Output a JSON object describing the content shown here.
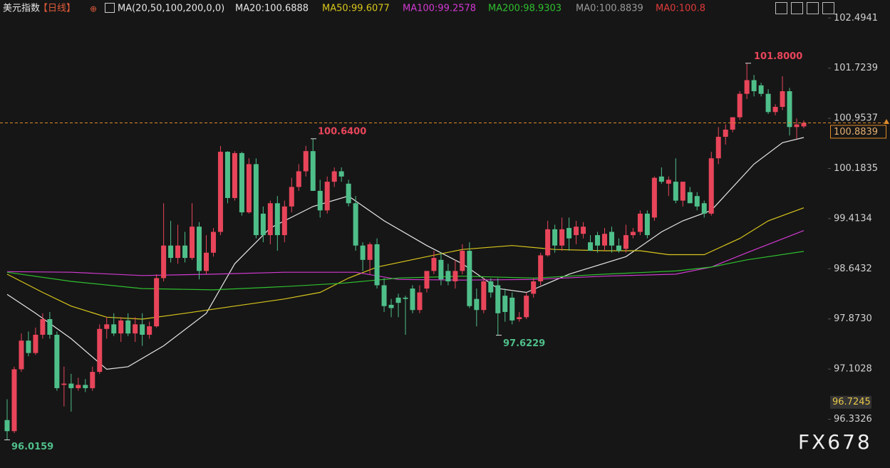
{
  "chart_data": {
    "type": "candlestick",
    "title": "美元指数",
    "period": "【日线】",
    "indicator": "MA(20,50,100,200,0,0)",
    "watermark": "FX678",
    "up_color": "#e8455a",
    "down_color": "#4fbf8a",
    "grid": false,
    "ylim": [
      95.77,
      102.53
    ],
    "yticks": [
      102.4941,
      101.7239,
      100.9537,
      100.1835,
      99.4134,
      98.6432,
      {
        "value": 97.873,
        "label": "97.8730"
      },
      97.1028,
      96.3326
    ],
    "last_price": 100.8839,
    "marker_price": 96.7245,
    "annotations": [
      {
        "value": 101.8,
        "label": "101.8000"
      },
      {
        "value": 100.64,
        "label": "100.6400"
      },
      {
        "value": 97.6229,
        "label": "97.6229"
      },
      {
        "value": 96.0159,
        "label": "96.0159"
      }
    ],
    "open": [
      96.32,
      96.15,
      97.1,
      97.54,
      97.35,
      97.63,
      97.87,
      97.63,
      96.86,
      96.88,
      96.81,
      96.86,
      96.81,
      97.06,
      97.72,
      97.79,
      97.65,
      97.85,
      97.65,
      97.79,
      97.63,
      97.76,
      98.5,
      99.0,
      98.81,
      99.0,
      98.81,
      99.29,
      98.61,
      98.89,
      99.21,
      100.44,
      99.73,
      100.42,
      99.51,
      100.25,
      99.49,
      99.16,
      99.65,
      99.16,
      99.6,
      99.9,
      100.14,
      100.45,
      99.84,
      99.54,
      99.98,
      100.14,
      99.95,
      99.65,
      99.0,
      98.78,
      99.02,
      98.39,
      98.09,
      98.2,
      98.2,
      98.34,
      98.01,
      98.34,
      98.61,
      98.78,
      98.61,
      98.45,
      98.61,
      98.92,
      98.18,
      98.01,
      98.45,
      98.39,
      98.23,
      98.2,
      97.87,
      97.9,
      98.26,
      98.45,
      98.85,
      99.25,
      99.0,
      99.27,
      99.16,
      99.18,
      99.05,
      99.16,
      99.0,
      99.21,
      99.0,
      98.95,
      99.16,
      99.21,
      99.49,
      99.43,
      100.06,
      99.95,
      99.98,
      99.69,
      99.82,
      99.76,
      99.65,
      99.49,
      100.34,
      100.67,
      100.78,
      100.97,
      101.33,
      101.54,
      101.46,
      101.33,
      101.05,
      101.13,
      101.37,
      100.82,
      100.83
    ],
    "high": [
      96.64,
      97.14,
      97.65,
      97.68,
      97.74,
      97.96,
      97.98,
      97.68,
      97.14,
      97.03,
      96.97,
      96.95,
      97.14,
      97.79,
      97.9,
      97.96,
      97.9,
      97.96,
      97.9,
      97.96,
      97.83,
      98.56,
      99.65,
      99.38,
      99.32,
      99.21,
      99.65,
      99.36,
      99.16,
      99.27,
      100.53,
      100.45,
      100.45,
      100.44,
      100.34,
      100.34,
      99.6,
      99.69,
      99.76,
      99.69,
      100.04,
      100.25,
      100.53,
      100.64,
      100.01,
      100.06,
      100.2,
      100.2,
      100.01,
      99.76,
      99.05,
      99.05,
      99.11,
      98.5,
      98.18,
      98.26,
      98.23,
      98.39,
      98.39,
      98.56,
      98.92,
      98.89,
      98.72,
      98.78,
      99.02,
      99.05,
      98.34,
      98.5,
      98.5,
      98.5,
      98.34,
      98.28,
      97.98,
      98.28,
      98.5,
      98.89,
      99.38,
      99.32,
      99.43,
      99.43,
      99.38,
      99.36,
      99.16,
      99.21,
      99.27,
      99.29,
      99.11,
      99.32,
      99.27,
      99.54,
      99.54,
      100.06,
      100.2,
      100.06,
      100.34,
      99.98,
      99.9,
      99.82,
      99.69,
      100.44,
      100.82,
      100.86,
      100.97,
      101.37,
      101.8,
      101.62,
      101.5,
      101.4,
      101.17,
      101.6,
      101.42,
      100.95,
      100.92
    ],
    "low": [
      96.0159,
      96.12,
      97.06,
      97.3,
      97.32,
      97.57,
      97.57,
      96.77,
      96.53,
      96.45,
      96.77,
      96.75,
      96.77,
      97.03,
      97.57,
      97.61,
      97.52,
      97.61,
      97.52,
      97.46,
      97.57,
      97.74,
      98.45,
      98.74,
      98.72,
      98.74,
      98.78,
      98.48,
      98.56,
      98.83,
      99.16,
      99.65,
      99.69,
      99.46,
      99.49,
      99.11,
      99.05,
      99.02,
      98.92,
      99.05,
      99.51,
      99.84,
      100.06,
      99.84,
      99.43,
      99.49,
      99.9,
      99.98,
      99.6,
      98.92,
      98.61,
      98.56,
      98.34,
      97.98,
      97.9,
      97.9,
      97.63,
      97.96,
      97.96,
      98.28,
      98.56,
      98.39,
      98.39,
      98.34,
      98.56,
      98.04,
      97.76,
      97.96,
      98.2,
      97.6229,
      97.83,
      97.79,
      97.83,
      97.87,
      98.2,
      98.39,
      98.83,
      98.89,
      98.92,
      98.92,
      99.02,
      99.11,
      98.92,
      98.89,
      98.92,
      98.89,
      98.89,
      98.89,
      99.11,
      99.16,
      99.11,
      99.38,
      99.95,
      99.76,
      99.65,
      99.6,
      99.65,
      99.54,
      99.43,
      99.46,
      100.25,
      100.55,
      100.74,
      100.93,
      101.25,
      101.29,
      101.29,
      101.02,
      101.0,
      101.08,
      100.69,
      100.64,
      100.8
    ],
    "close": [
      96.15,
      97.1,
      97.54,
      97.35,
      97.63,
      97.87,
      97.63,
      96.81,
      96.88,
      96.81,
      96.86,
      96.81,
      97.06,
      97.72,
      97.79,
      97.65,
      97.85,
      97.65,
      97.79,
      97.63,
      97.76,
      98.5,
      99.0,
      98.81,
      99.0,
      98.81,
      99.29,
      98.61,
      98.89,
      99.21,
      100.44,
      99.73,
      100.42,
      99.51,
      100.25,
      99.16,
      99.16,
      99.65,
      99.16,
      99.6,
      99.9,
      100.14,
      100.45,
      99.84,
      99.54,
      99.98,
      100.14,
      100.06,
      99.65,
      99.0,
      98.78,
      99.02,
      98.39,
      98.07,
      98.04,
      98.12,
      98.18,
      98.01,
      98.28,
      98.61,
      98.81,
      98.48,
      98.45,
      98.61,
      98.92,
      98.07,
      98.01,
      98.45,
      98.28,
      97.96,
      97.98,
      97.85,
      97.9,
      98.23,
      98.45,
      98.85,
      99.25,
      99.0,
      99.25,
      99.11,
      99.29,
      99.29,
      98.92,
      99.0,
      99.18,
      99.0,
      98.92,
      99.16,
      99.21,
      99.49,
      99.16,
      100.04,
      99.98,
      100.01,
      99.69,
      99.98,
      99.65,
      99.6,
      99.49,
      100.34,
      100.67,
      100.78,
      100.97,
      101.33,
      101.54,
      101.37,
      101.33,
      101.05,
      101.13,
      101.37,
      100.82,
      100.86,
      100.8839
    ],
    "series": [
      {
        "name": "MA20:100.6888",
        "color": "#e6e6e6",
        "x": [
          0,
          4,
          9,
          14,
          17,
          22,
          28,
          32,
          37,
          43,
          48,
          53,
          59,
          64,
          69,
          73,
          79,
          87,
          92,
          95,
          99,
          105,
          109,
          112
        ],
        "values": [
          98.25,
          97.96,
          97.57,
          97.1,
          97.14,
          97.46,
          97.96,
          98.72,
          99.27,
          99.6,
          99.76,
          99.38,
          99.0,
          98.72,
          98.34,
          98.28,
          98.56,
          98.83,
          99.21,
          99.38,
          99.54,
          100.25,
          100.58,
          100.66
        ]
      },
      {
        "name": "MA50:99.6077",
        "color": "#d8c61c",
        "x": [
          0,
          5,
          9,
          14,
          19,
          25,
          32,
          39,
          44,
          48,
          52,
          59,
          64,
          71,
          77,
          84,
          89,
          93,
          98,
          103,
          107,
          112
        ],
        "values": [
          98.56,
          98.28,
          98.07,
          97.9,
          97.87,
          97.96,
          98.07,
          98.18,
          98.28,
          98.5,
          98.67,
          98.83,
          98.94,
          99.0,
          98.94,
          98.92,
          98.92,
          98.86,
          98.86,
          99.11,
          99.38,
          99.58
        ]
      },
      {
        "name": "MA100:99.2578",
        "color": "#d23ad2",
        "x": [
          0,
          9,
          19,
          29,
          39,
          49,
          55,
          64,
          74,
          84,
          94,
          99,
          104,
          112
        ],
        "values": [
          98.6,
          98.59,
          98.54,
          98.56,
          98.59,
          98.59,
          98.48,
          98.47,
          98.48,
          98.53,
          98.56,
          98.67,
          98.89,
          99.23
        ]
      },
      {
        "name": "MA200:98.9303",
        "color": "#2fbf2f",
        "x": [
          0,
          9,
          19,
          29,
          39,
          47,
          55,
          64,
          74,
          84,
          94,
          99,
          104,
          112
        ],
        "values": [
          98.59,
          98.45,
          98.34,
          98.32,
          98.37,
          98.42,
          98.5,
          98.53,
          98.5,
          98.56,
          98.61,
          98.67,
          98.78,
          98.91
        ]
      }
    ],
    "extra_legend": [
      {
        "name": "MA0:100.8839",
        "color": "#9a9a9a"
      },
      {
        "name": "MA0:100.8",
        "color": "#e23a3a"
      }
    ]
  }
}
